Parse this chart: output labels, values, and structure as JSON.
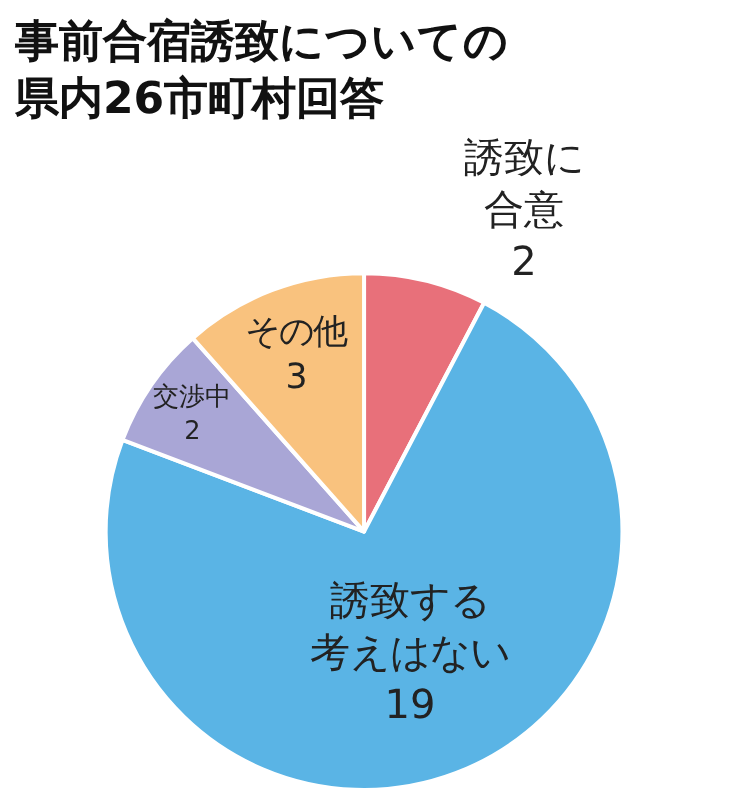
{
  "chart_data": {
    "type": "pie",
    "title": "事前合宿誘致についての県内26市町村回答",
    "categories": [
      "誘致に合意",
      "誘致する考えはない",
      "交渉中",
      "その他"
    ],
    "values": [
      2,
      19,
      2,
      3
    ],
    "colors": [
      "#e8707a",
      "#5ab4e5",
      "#a9a6d6",
      "#f9c27e"
    ],
    "data_labels": true,
    "legend": false
  }
}
